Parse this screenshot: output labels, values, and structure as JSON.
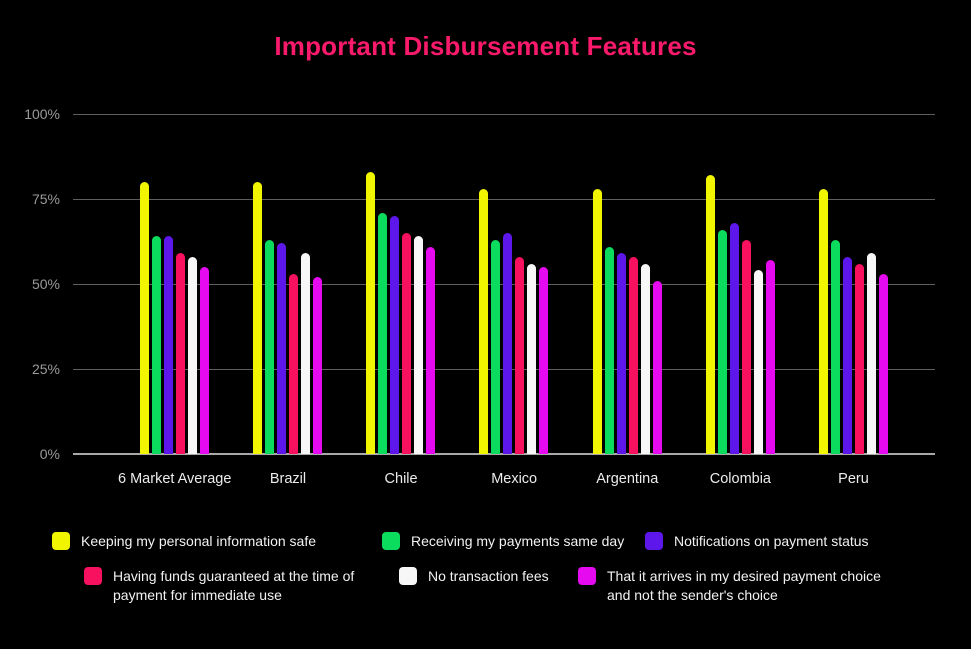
{
  "chart_data": {
    "type": "bar",
    "title": "Important Disbursement Features",
    "title_color": "#FA1A6C",
    "background_color": "#000000",
    "categories": [
      "6 Market Average",
      "Brazil",
      "Chile",
      "Mexico",
      "Argentina",
      "Colombia",
      "Peru"
    ],
    "series": [
      {
        "name": "Keeping my personal information safe",
        "color": "#F2F500",
        "values": [
          80,
          80,
          83,
          78,
          78,
          82,
          78
        ]
      },
      {
        "name": "Receiving my payments same day",
        "color": "#0BDC5E",
        "values": [
          64,
          63,
          71,
          63,
          61,
          66,
          63
        ]
      },
      {
        "name": "Notifications on payment status",
        "color": "#5E17EB",
        "values": [
          64,
          62,
          70,
          65,
          59,
          68,
          58
        ]
      },
      {
        "name": "Having funds guaranteed at the time of payment for immediate use",
        "color": "#F8115E",
        "values": [
          59,
          53,
          65,
          58,
          58,
          63,
          56
        ]
      },
      {
        "name": "No transaction fees",
        "color": "#F7F7F7",
        "values": [
          58,
          59,
          64,
          56,
          56,
          54,
          59
        ]
      },
      {
        "name": "That it arrives in my desired payment choice and not the sender's choice",
        "color": "#E50AF0",
        "values": [
          55,
          52,
          61,
          55,
          51,
          57,
          53
        ]
      }
    ],
    "yticks": [
      {
        "value": 0,
        "label": "0%"
      },
      {
        "value": 25,
        "label": "25%"
      },
      {
        "value": 50,
        "label": "50%"
      },
      {
        "value": 75,
        "label": "75%"
      },
      {
        "value": 100,
        "label": "100%"
      }
    ],
    "ylim": [
      0,
      100
    ],
    "grid": true,
    "legend_position": "bottom"
  }
}
